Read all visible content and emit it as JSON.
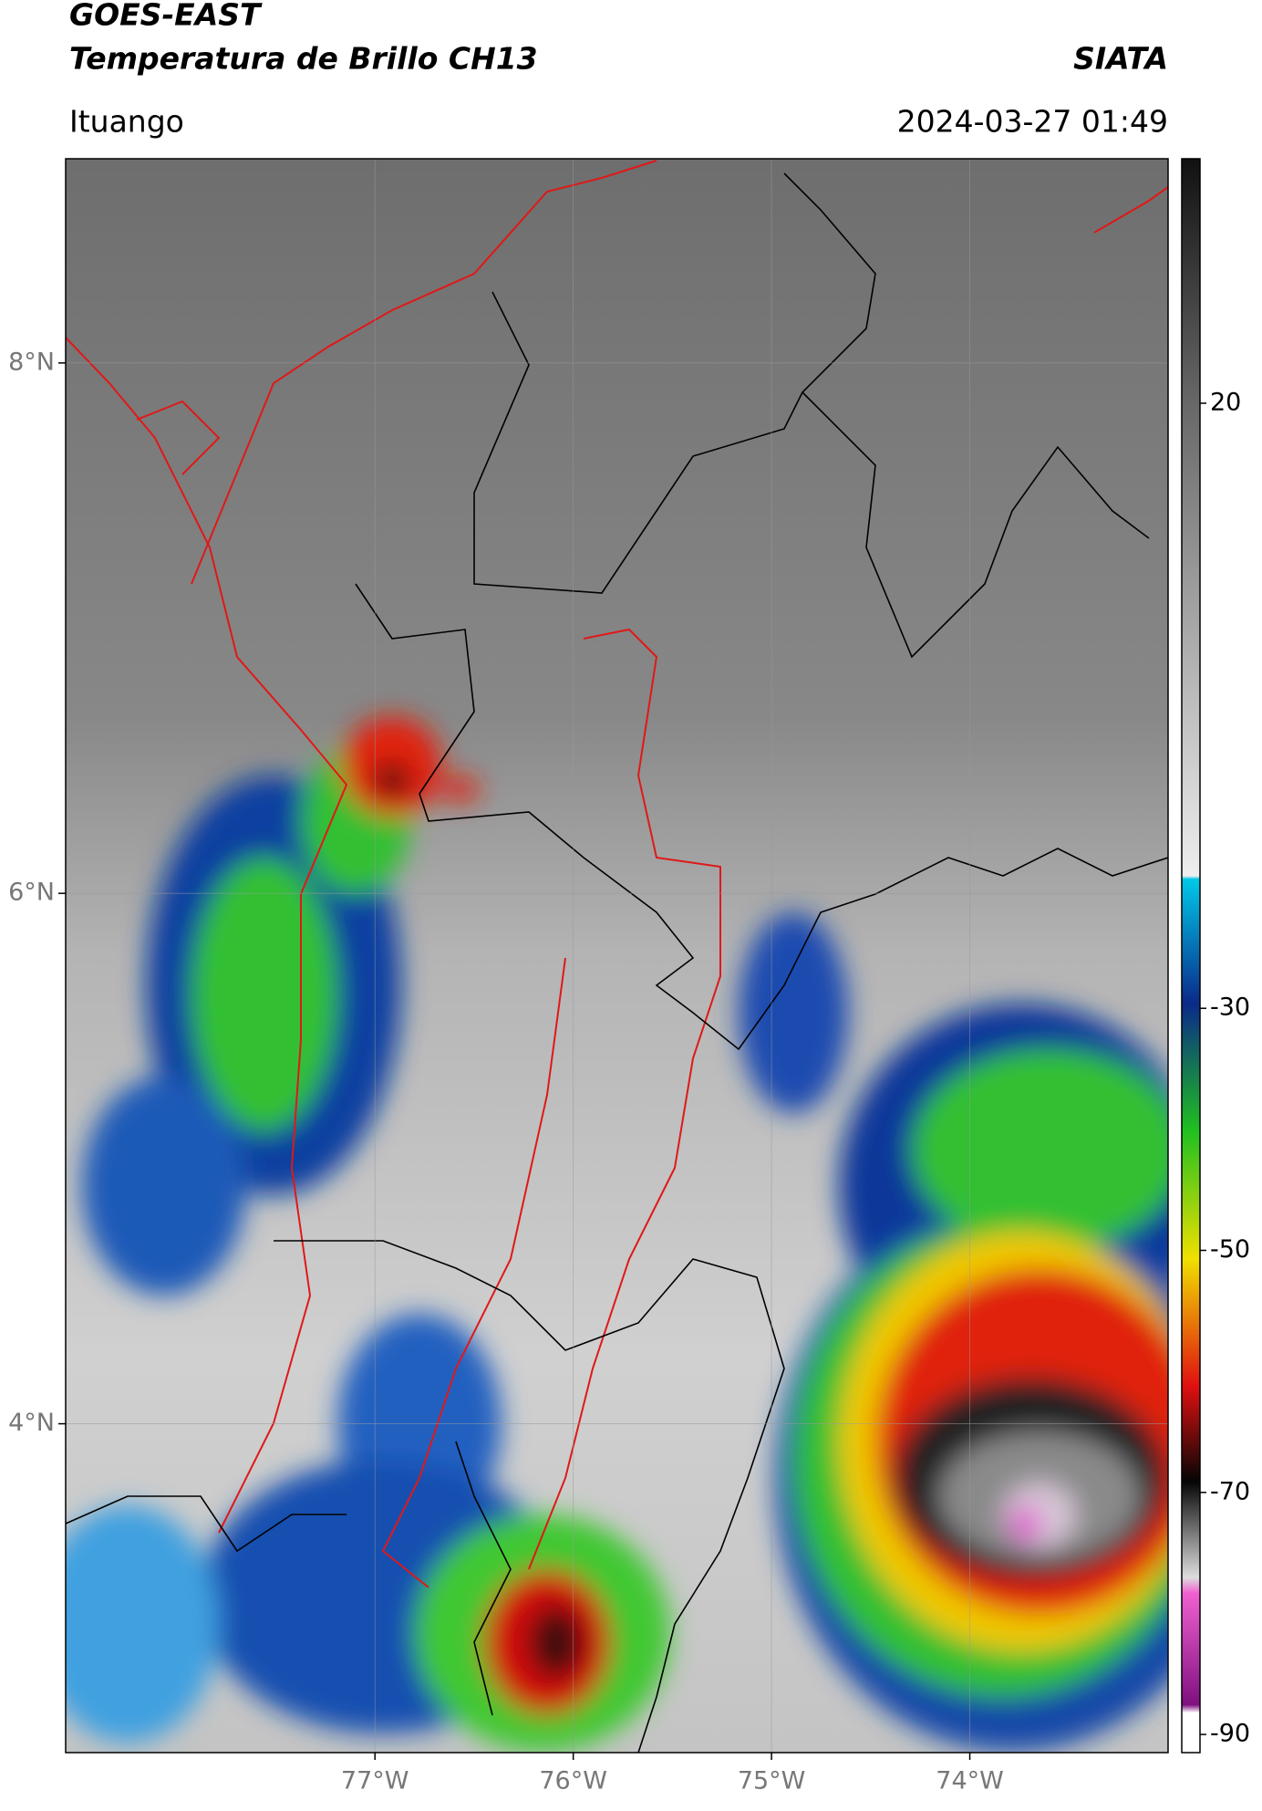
{
  "header": {
    "title": "GOES-EAST",
    "subtitle": "Temperatura de Brillo CH13",
    "brand": "SIATA",
    "location": "Ituango",
    "timestamp": "2024-03-27 01:49"
  },
  "map": {
    "latlim": [
      2.76,
      8.77
    ],
    "lonlim": [
      -78.56,
      -73.0
    ],
    "lat_ticks": [
      {
        "value": 8,
        "label": "8°N"
      },
      {
        "value": 6,
        "label": "6°N"
      },
      {
        "value": 4,
        "label": "4°N"
      }
    ],
    "lon_ticks": [
      {
        "value": -77,
        "label": "77°W"
      },
      {
        "value": -76,
        "label": "76°W"
      },
      {
        "value": -75,
        "label": "75°W"
      },
      {
        "value": -74,
        "label": "74°W"
      }
    ]
  },
  "colorbar": {
    "lim": [
      -91.5,
      40.2
    ],
    "ticks": [
      20,
      -30,
      -50,
      -70,
      -90
    ]
  }
}
